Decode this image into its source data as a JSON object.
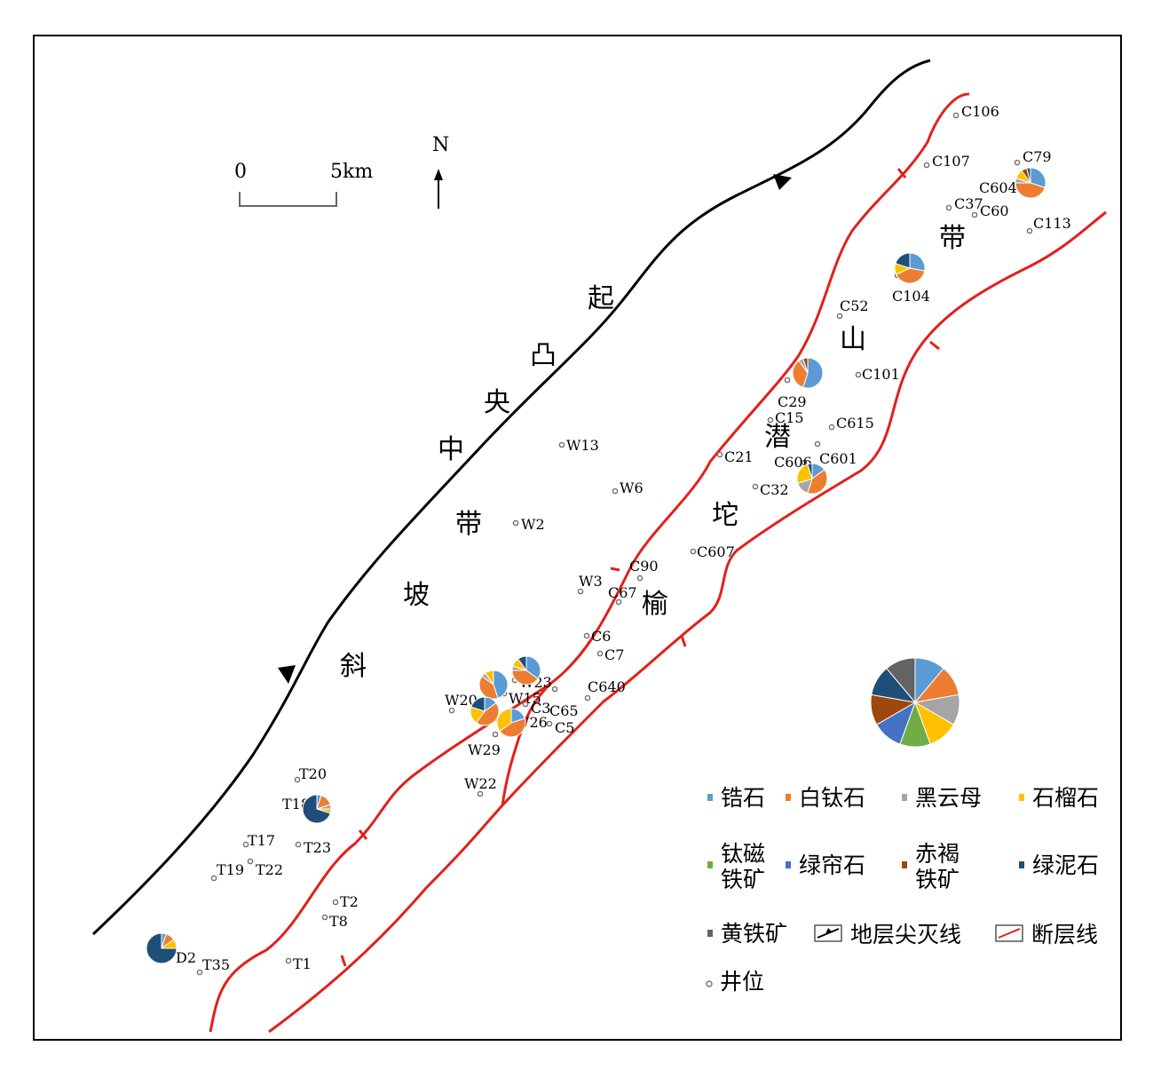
{
  "scale_bar": {
    "start_label": "0",
    "end_label": "5km"
  },
  "north_arrow": {
    "label": "N"
  },
  "regions": [
    {
      "chars": [
        "中",
        "央",
        "凸",
        "起"
      ]
    },
    {
      "chars": [
        "斜",
        "坡",
        "带"
      ]
    },
    {
      "chars": [
        "榆",
        "坨",
        "潜",
        "山",
        "带"
      ]
    }
  ],
  "minerals": [
    {
      "name": "锆石",
      "color": "#5b9bd5"
    },
    {
      "name": "白钛石",
      "color": "#ed7d31"
    },
    {
      "name": "黑云母",
      "color": "#a5a5a5"
    },
    {
      "name": "石榴石",
      "color": "#ffc000"
    },
    {
      "name": "钛磁\n铁矿",
      "color": "#70ad47"
    },
    {
      "name": "绿帘石",
      "color": "#4472c4"
    },
    {
      "name": "赤褐\n铁矿",
      "color": "#9e480e"
    },
    {
      "name": "绿泥石",
      "color": "#1f4e79"
    },
    {
      "name": "黄铁矿",
      "color": "#636363"
    }
  ],
  "legend": {
    "pinchout_label": "地层尖灭线",
    "fault_label": "断层线",
    "well_label": "井位"
  },
  "wells": [
    "C106",
    "C107",
    "C79",
    "C604",
    "C37",
    "C60",
    "C113",
    "C104",
    "C52",
    "C101",
    "C29",
    "C15",
    "C615",
    "C606",
    "C601",
    "C21",
    "C32",
    "C607",
    "W13",
    "W6",
    "W2",
    "W3",
    "C90",
    "C67",
    "C6",
    "C7",
    "C640",
    "W23",
    "W15",
    "W20",
    "C3",
    "C65",
    "W26",
    "C5",
    "W29",
    "W22",
    "T20",
    "T18",
    "T23",
    "T17",
    "T22",
    "T19",
    "T2",
    "T8",
    "T1",
    "D2",
    "T35"
  ],
  "pie_data": [
    {
      "well": "C79",
      "fractions": [
        0.3,
        0.45,
        0.05,
        0.1,
        0,
        0,
        0.06,
        0.04,
        0
      ]
    },
    {
      "well": "C104",
      "fractions": [
        0.28,
        0.4,
        0,
        0.12,
        0,
        0,
        0,
        0.2,
        0
      ]
    },
    {
      "well": "C29",
      "fractions": [
        0.55,
        0.35,
        0.05,
        0,
        0,
        0,
        0.05,
        0,
        0
      ]
    },
    {
      "well": "C606",
      "fractions": [
        0.15,
        0.4,
        0.15,
        0.25,
        0,
        0,
        0,
        0.05,
        0
      ]
    },
    {
      "well": "W23",
      "fractions": [
        0.35,
        0.4,
        0.05,
        0.1,
        0,
        0,
        0,
        0.1,
        0
      ]
    },
    {
      "well": "W20",
      "fractions": [
        0.45,
        0.4,
        0.05,
        0.1,
        0,
        0,
        0,
        0,
        0
      ]
    },
    {
      "well": "W26",
      "fractions": [
        0.15,
        0.45,
        0,
        0.2,
        0,
        0,
        0,
        0.2,
        0
      ]
    },
    {
      "well": "W29",
      "fractions": [
        0.2,
        0.45,
        0,
        0.35,
        0,
        0,
        0,
        0,
        0
      ]
    },
    {
      "well": "T18",
      "fractions": [
        0.05,
        0.15,
        0.05,
        0.05,
        0,
        0,
        0,
        0.7,
        0
      ]
    },
    {
      "well": "D2",
      "fractions": [
        0.05,
        0.1,
        0,
        0.1,
        0,
        0,
        0,
        0.75,
        0
      ]
    }
  ],
  "legend_pie": {
    "fractions": [
      0.1111,
      0.1111,
      0.1111,
      0.1111,
      0.1111,
      0.1111,
      0.1111,
      0.1111,
      0.1112
    ]
  }
}
